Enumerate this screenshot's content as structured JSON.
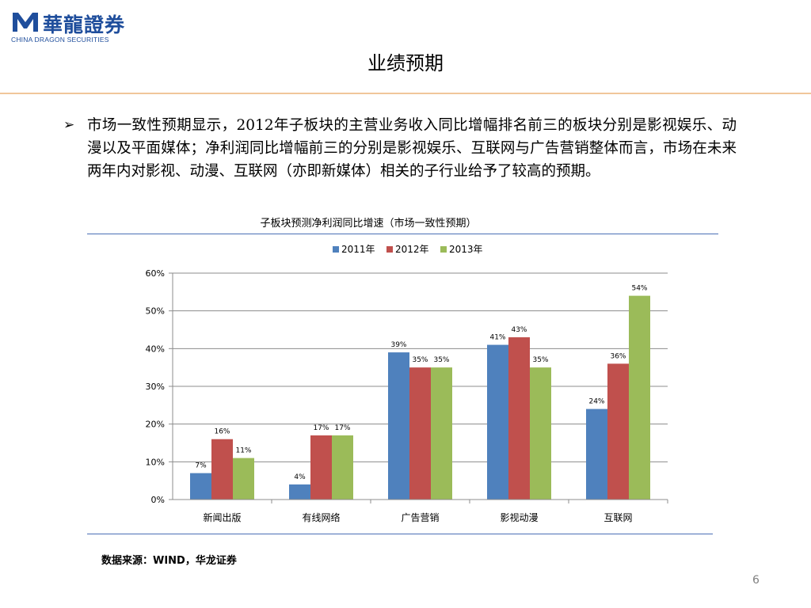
{
  "header": {
    "logo_cn": "華龍證券",
    "logo_en": "CHINA DRAGON SECURITIES",
    "title": "业绩预期"
  },
  "body": {
    "bullet": "➢",
    "paragraph": "市场一致性预期显示，2012年子板块的主营业务收入同比增幅排名前三的板块分别是影视娱乐、动漫以及平面媒体；净利润同比增幅前三的分别是影视娱乐、互联网与广告营销整体而言，市场在未来两年内对影视、动漫、互联网（亦即新媒体）相关的子行业给予了较高的预期。"
  },
  "colors": {
    "s2011": "#4f81bd",
    "s2012": "#c0504d",
    "s2013": "#9bbb59",
    "accent_rule": "#f0c69a"
  },
  "chart_data": {
    "type": "bar",
    "title": "子板块预测净利润同比增速（市场一致性预期）",
    "categories": [
      "新闻出版",
      "有线网络",
      "广告营销",
      "影视动漫",
      "互联网"
    ],
    "series": [
      {
        "name": "2011年",
        "values": [
          7,
          4,
          39,
          41,
          24
        ],
        "labels": [
          "7%",
          "4%",
          "39%",
          "41%",
          "24%"
        ]
      },
      {
        "name": "2012年",
        "values": [
          16,
          17,
          35,
          43,
          36
        ],
        "labels": [
          "16%",
          "17%",
          "35%",
          "43%",
          "36%"
        ]
      },
      {
        "name": "2013年",
        "values": [
          11,
          17,
          35,
          35,
          54
        ],
        "labels": [
          "11%",
          "17%",
          "35%",
          "35%",
          "54%"
        ]
      }
    ],
    "ylim": [
      0,
      60
    ],
    "yticks": [
      "0%",
      "10%",
      "20%",
      "30%",
      "40%",
      "50%",
      "60%"
    ],
    "grid": true,
    "legend": "top-center"
  },
  "footer": {
    "source": "数据来源：WIND，华龙证券",
    "page": "6"
  }
}
